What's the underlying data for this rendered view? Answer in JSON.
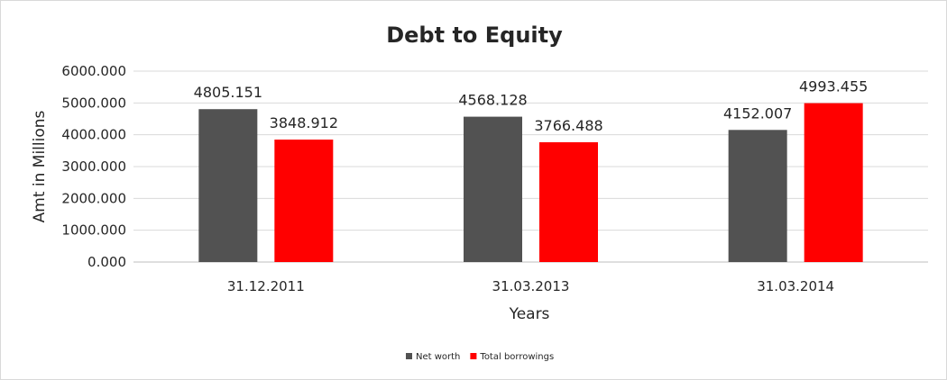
{
  "chart_data": {
    "type": "bar",
    "title": "Debt to Equity",
    "xlabel": "Years",
    "ylabel": "Amt in Millions",
    "categories": [
      "31.12.2011",
      "31.03.2013",
      "31.03.2014"
    ],
    "series": [
      {
        "name": "Net worth",
        "color": "#525252",
        "values": [
          4805.151,
          4568.128,
          4152.007
        ]
      },
      {
        "name": "Total borrowings",
        "color": "#ff0000",
        "values": [
          3848.912,
          3766.488,
          4993.455
        ]
      }
    ],
    "ylim": [
      0,
      6000
    ],
    "yticks": [
      "0.000",
      "1000.000",
      "2000.000",
      "3000.000",
      "4000.000",
      "5000.000",
      "6000.000"
    ],
    "data_labels": [
      [
        "4805.151",
        "4568.128",
        "4152.007"
      ],
      [
        "3848.912",
        "3766.488",
        "4993.455"
      ]
    ],
    "grid": true,
    "legend_position": "bottom"
  }
}
